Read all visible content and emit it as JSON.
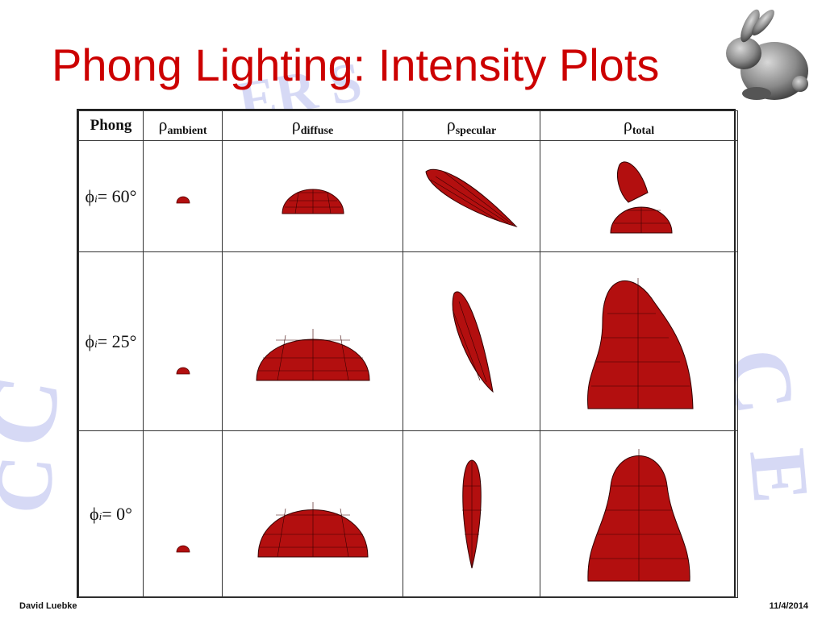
{
  "slide": {
    "title": "Phong Lighting: Intensity Plots",
    "title_color": "#cc0000"
  },
  "table": {
    "headers": {
      "phong": "Phong",
      "ambient_rho": "ρ",
      "ambient_sub": "ambient",
      "diffuse_rho": "ρ",
      "diffuse_sub": "diffuse",
      "specular_rho": "ρ",
      "specular_sub": "specular",
      "total_rho": "ρ",
      "total_sub": "total"
    },
    "rows": [
      {
        "phi": "ϕ",
        "sub": "i",
        "value": "= 60°"
      },
      {
        "phi": "ϕ",
        "sub": "i",
        "value": "= 25°"
      },
      {
        "phi": "ϕ",
        "sub": "i",
        "value": "= 0°"
      }
    ],
    "shape_color": "#b30f0f"
  },
  "footer": {
    "author": "David Luebke",
    "date": "11/4/2014"
  },
  "icons": {
    "logo": "stanford-bunny-icon"
  }
}
